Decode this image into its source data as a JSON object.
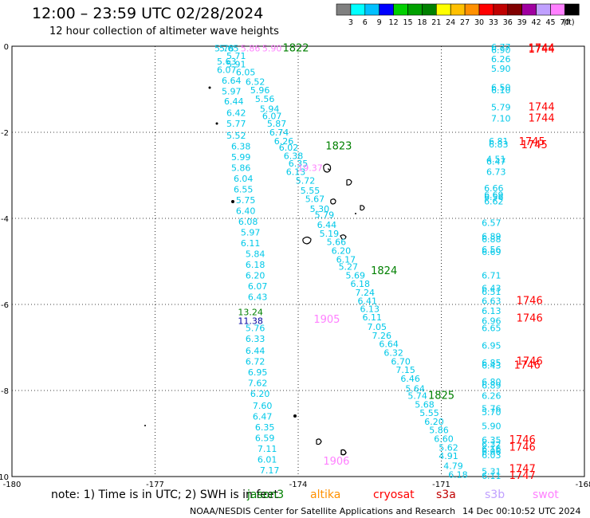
{
  "header": {
    "title": "12:00 – 23:59 UTC 02/28/2024",
    "subtitle": "12 hour collection of altimeter wave heights"
  },
  "colorbar": {
    "colors": [
      "#808080",
      "#00ffff",
      "#00c0ff",
      "#0000ff",
      "#00d000",
      "#00a000",
      "#008000",
      "#ffff00",
      "#ffc000",
      "#ff9000",
      "#ff0000",
      "#c00000",
      "#800000",
      "#a000a0",
      "#c0a0ff",
      "#ff80ff",
      "#000000"
    ],
    "labels": [
      "3",
      "6",
      "9",
      "12",
      "15",
      "18",
      "21",
      "24",
      "27",
      "30",
      "33",
      "36",
      "39",
      "42",
      "45",
      "70",
      "(ft)"
    ]
  },
  "footer": {
    "note": "note:  1) Time is in UTC; 2) SWH is in feet",
    "satellites": [
      {
        "name": "jason3",
        "color": "#008000"
      },
      {
        "name": "altika",
        "color": "#ff9000"
      },
      {
        "name": "cryosat",
        "color": "#ff0000"
      },
      {
        "name": "s3a",
        "color": "#c00000"
      },
      {
        "name": "s3b",
        "color": "#c0a0ff"
      },
      {
        "name": "swot",
        "color": "#ff80ff"
      }
    ],
    "credit": "NOAA/NESDIS Center for Satellite Applications and Research",
    "generated": "14 Dec 00:10:52 UTC 2024"
  },
  "chart_data": {
    "type": "scatter",
    "title": "12:00 – 23:59 UTC 02/28/2024",
    "xlim": [
      -180,
      -168
    ],
    "ylim": [
      -10,
      0
    ],
    "x_ticks": [
      "-180",
      "-177",
      "-174",
      "-171",
      "-168",
      "-16"
    ],
    "y_ticks": [
      "0",
      "-2",
      "-4",
      "-6",
      "-8",
      "-10"
    ],
    "grid": true,
    "series": [
      {
        "name": "jason3",
        "color": "#00c8e8",
        "points": [
          [
            -175.55,
            -0.05,
            "5.78"
          ],
          [
            -175.45,
            -0.05,
            "5.65"
          ],
          [
            -175.3,
            -0.22,
            "5.71"
          ],
          [
            -175.5,
            -0.35,
            "5.63"
          ],
          [
            -175.3,
            -0.42,
            "5.91"
          ],
          [
            -175.5,
            -0.55,
            "6.07"
          ],
          [
            -175.1,
            -0.6,
            "6.05"
          ],
          [
            -175.4,
            -0.8,
            "6.64"
          ],
          [
            -174.9,
            -0.82,
            "6.52"
          ],
          [
            -175.4,
            -1.05,
            "5.97"
          ],
          [
            -174.8,
            -1.02,
            "5.96"
          ],
          [
            -175.35,
            -1.28,
            "6.44"
          ],
          [
            -174.7,
            -1.22,
            "5.56"
          ],
          [
            -175.3,
            -1.55,
            "6.42"
          ],
          [
            -174.6,
            -1.45,
            "5.94"
          ],
          [
            -175.3,
            -1.8,
            "5.77"
          ],
          [
            -174.55,
            -1.62,
            "6.07"
          ],
          [
            -174.45,
            -1.8,
            "5.87"
          ],
          [
            -175.3,
            -2.07,
            "5.52"
          ],
          [
            -174.4,
            -2.0,
            "6.74"
          ],
          [
            -174.3,
            -2.2,
            "6.26"
          ],
          [
            -175.2,
            -2.32,
            "6.38"
          ],
          [
            -174.2,
            -2.35,
            "6.02"
          ],
          [
            -175.2,
            -2.57,
            "5.99"
          ],
          [
            -174.1,
            -2.55,
            "6.38"
          ],
          [
            -174.0,
            -2.72,
            "6.35"
          ],
          [
            -175.2,
            -2.82,
            "5.86"
          ],
          [
            -174.05,
            -2.92,
            "6.13"
          ],
          [
            -175.15,
            -3.07,
            "6.04"
          ],
          [
            -173.85,
            -3.12,
            "5.72"
          ],
          [
            -175.15,
            -3.32,
            "6.55"
          ],
          [
            -173.75,
            -3.35,
            "5.55"
          ],
          [
            -175.1,
            -3.57,
            "5.75"
          ],
          [
            -173.65,
            -3.55,
            "5.67"
          ],
          [
            -173.55,
            -3.78,
            "5.30"
          ],
          [
            -175.1,
            -3.82,
            "6.40"
          ],
          [
            -173.45,
            -3.92,
            "5.79"
          ],
          [
            -175.05,
            -4.07,
            "6.08"
          ],
          [
            -173.4,
            -4.15,
            "6.44"
          ],
          [
            -175.0,
            -4.32,
            "5.97"
          ],
          [
            -173.35,
            -4.35,
            "5.19"
          ],
          [
            -175.0,
            -4.57,
            "6.11"
          ],
          [
            -173.2,
            -4.55,
            "5.66"
          ],
          [
            -174.9,
            -4.82,
            "5.84"
          ],
          [
            -173.1,
            -4.75,
            "6.20"
          ],
          [
            -173.0,
            -4.95,
            "6.17"
          ],
          [
            -174.9,
            -5.07,
            "6.18"
          ],
          [
            -172.95,
            -5.12,
            "5.27"
          ],
          [
            -174.9,
            -5.32,
            "6.20"
          ],
          [
            -172.8,
            -5.32,
            "5.69"
          ],
          [
            -174.85,
            -5.57,
            "6.07"
          ],
          [
            -172.7,
            -5.52,
            "6.18"
          ],
          [
            -172.6,
            -5.72,
            "7.24"
          ],
          [
            -174.85,
            -5.82,
            "6.43"
          ],
          [
            -172.55,
            -5.92,
            "6.41"
          ],
          [
            -172.5,
            -6.1,
            "6.13"
          ],
          [
            -172.45,
            -6.3,
            "6.11"
          ],
          [
            -172.35,
            -6.52,
            "7.05"
          ],
          [
            -172.25,
            -6.72,
            "7.26"
          ],
          [
            -172.1,
            -6.92,
            "6.64"
          ],
          [
            -174.9,
            -6.55,
            "5.76"
          ],
          [
            -174.9,
            -6.8,
            "6.33"
          ],
          [
            -174.9,
            -7.07,
            "6.44"
          ],
          [
            -174.9,
            -7.32,
            "6.72"
          ],
          [
            -174.85,
            -7.57,
            "6.95"
          ],
          [
            -172.0,
            -7.12,
            "6.32"
          ],
          [
            -171.85,
            -7.32,
            "6.70"
          ],
          [
            -171.75,
            -7.52,
            "7.15"
          ],
          [
            -171.65,
            -7.72,
            "6.46"
          ],
          [
            -174.85,
            -7.82,
            "7.62"
          ],
          [
            -171.55,
            -7.95,
            "5.64"
          ],
          [
            -174.8,
            -8.07,
            "6.20"
          ],
          [
            -171.5,
            -8.12,
            "5.74"
          ],
          [
            -171.35,
            -8.32,
            "5.68"
          ],
          [
            -174.75,
            -8.35,
            "7.60"
          ],
          [
            -171.25,
            -8.52,
            "5.55"
          ],
          [
            -174.75,
            -8.6,
            "6.47"
          ],
          [
            -171.15,
            -8.72,
            "6.20"
          ],
          [
            -174.7,
            -8.85,
            "6.35"
          ],
          [
            -171.05,
            -8.92,
            "5.86"
          ],
          [
            -174.7,
            -9.1,
            "6.59"
          ],
          [
            -170.95,
            -9.12,
            "6.60"
          ],
          [
            -174.65,
            -9.35,
            "7.11"
          ],
          [
            -170.85,
            -9.32,
            "5.62"
          ],
          [
            -174.65,
            -9.6,
            "6.01"
          ],
          [
            -170.85,
            -9.52,
            "4.91"
          ],
          [
            -170.75,
            -9.75,
            "4.79"
          ],
          [
            -174.6,
            -9.85,
            "7.17"
          ],
          [
            -170.65,
            -9.95,
            "6.18"
          ]
        ]
      },
      {
        "name": "s3a-track",
        "color": "#00c8e8",
        "points": [
          [
            -169.75,
            -0.02,
            "6.77"
          ],
          [
            -169.75,
            -0.08,
            "6.90"
          ],
          [
            -169.75,
            -0.3,
            "6.26"
          ],
          [
            -169.75,
            -0.52,
            "5.90"
          ],
          [
            -169.75,
            -0.95,
            "6.50"
          ],
          [
            -169.75,
            -1.02,
            "6.10"
          ],
          [
            -169.75,
            -1.42,
            "5.79"
          ],
          [
            -169.75,
            -1.68,
            "7.10"
          ],
          [
            -169.8,
            -2.2,
            "6.81"
          ],
          [
            -169.8,
            -2.28,
            "6.83"
          ],
          [
            -169.85,
            -2.62,
            "4.51"
          ],
          [
            -169.85,
            -2.68,
            "6.47"
          ],
          [
            -169.85,
            -2.92,
            "6.73"
          ],
          [
            -169.9,
            -3.3,
            "6.66"
          ],
          [
            -169.9,
            -3.45,
            "6.69"
          ],
          [
            -169.9,
            -3.5,
            "6.56"
          ],
          [
            -169.9,
            -3.6,
            "6.62"
          ],
          [
            -169.95,
            -4.1,
            "6.57"
          ],
          [
            -169.95,
            -4.42,
            "6.89"
          ],
          [
            -169.95,
            -4.48,
            "6.88"
          ],
          [
            -169.95,
            -4.72,
            "6.56"
          ],
          [
            -169.95,
            -4.78,
            "6.69"
          ],
          [
            -169.95,
            -5.32,
            "6.71"
          ],
          [
            -169.95,
            -5.62,
            "6.43"
          ],
          [
            -169.95,
            -5.7,
            "6.51"
          ],
          [
            -169.95,
            -5.92,
            "6.63"
          ],
          [
            -169.95,
            -6.15,
            "6.13"
          ],
          [
            -169.95,
            -6.38,
            "6.96"
          ],
          [
            -169.95,
            -6.55,
            "6.65"
          ],
          [
            -169.95,
            -6.95,
            "6.95"
          ],
          [
            -169.95,
            -7.35,
            "6.85"
          ],
          [
            -169.95,
            -7.42,
            "6.43"
          ],
          [
            -169.95,
            -7.8,
            "6.80"
          ],
          [
            -169.95,
            -7.88,
            "6.89"
          ],
          [
            -169.95,
            -8.12,
            "6.26"
          ],
          [
            -169.95,
            -8.42,
            "5.76"
          ],
          [
            -169.95,
            -8.5,
            "5.70"
          ],
          [
            -169.95,
            -8.82,
            "5.90"
          ],
          [
            -169.95,
            -9.15,
            "6.35"
          ],
          [
            -169.95,
            -9.25,
            "6.32"
          ],
          [
            -169.95,
            -9.35,
            "6.16"
          ],
          [
            -169.95,
            -9.42,
            "6.06"
          ],
          [
            -169.95,
            -9.5,
            "6.03"
          ],
          [
            -169.95,
            -9.88,
            "5.31"
          ],
          [
            -169.95,
            -9.98,
            "6.11"
          ]
        ]
      },
      {
        "name": "swot",
        "color": "#ff80ff",
        "points": [
          [
            -174.55,
            -0.05,
            "5.90"
          ],
          [
            -175.0,
            -0.05,
            "5.86"
          ],
          [
            -173.75,
            -2.82,
            "19.37"
          ],
          [
            -173.4,
            -6.35,
            "1905"
          ],
          [
            -173.2,
            -9.65,
            "1906"
          ]
        ]
      },
      {
        "name": "jason3-times",
        "color": "#008000",
        "points": [
          [
            -174.05,
            -0.05,
            "1822"
          ],
          [
            -173.15,
            -2.32,
            "1823"
          ],
          [
            -172.2,
            -5.22,
            "1824"
          ],
          [
            -171.0,
            -8.12,
            "1825"
          ],
          [
            -175.0,
            -6.18,
            "13.24"
          ]
        ]
      },
      {
        "name": "other",
        "color": "#0000a0",
        "points": [
          [
            -175.0,
            -6.38,
            "11.38"
          ]
        ]
      },
      {
        "name": "cryosat",
        "color": "#ff0000",
        "points": [
          [
            -168.9,
            -0.05,
            "1744"
          ],
          [
            -168.9,
            -0.07,
            "1744"
          ],
          [
            -168.9,
            -1.42,
            "1744"
          ],
          [
            -168.9,
            -1.68,
            "1744"
          ],
          [
            -169.1,
            -2.22,
            "1745"
          ],
          [
            -169.05,
            -2.3,
            "1745"
          ],
          [
            -169.15,
            -5.92,
            "1746"
          ],
          [
            -169.15,
            -6.32,
            "1746"
          ],
          [
            -169.15,
            -7.32,
            "1746"
          ],
          [
            -169.2,
            -7.42,
            "1746"
          ],
          [
            -169.3,
            -9.15,
            "1746"
          ],
          [
            -169.3,
            -9.32,
            "1746"
          ],
          [
            -169.3,
            -9.82,
            "1747"
          ],
          [
            -169.3,
            -9.98,
            "1747"
          ]
        ]
      }
    ]
  }
}
